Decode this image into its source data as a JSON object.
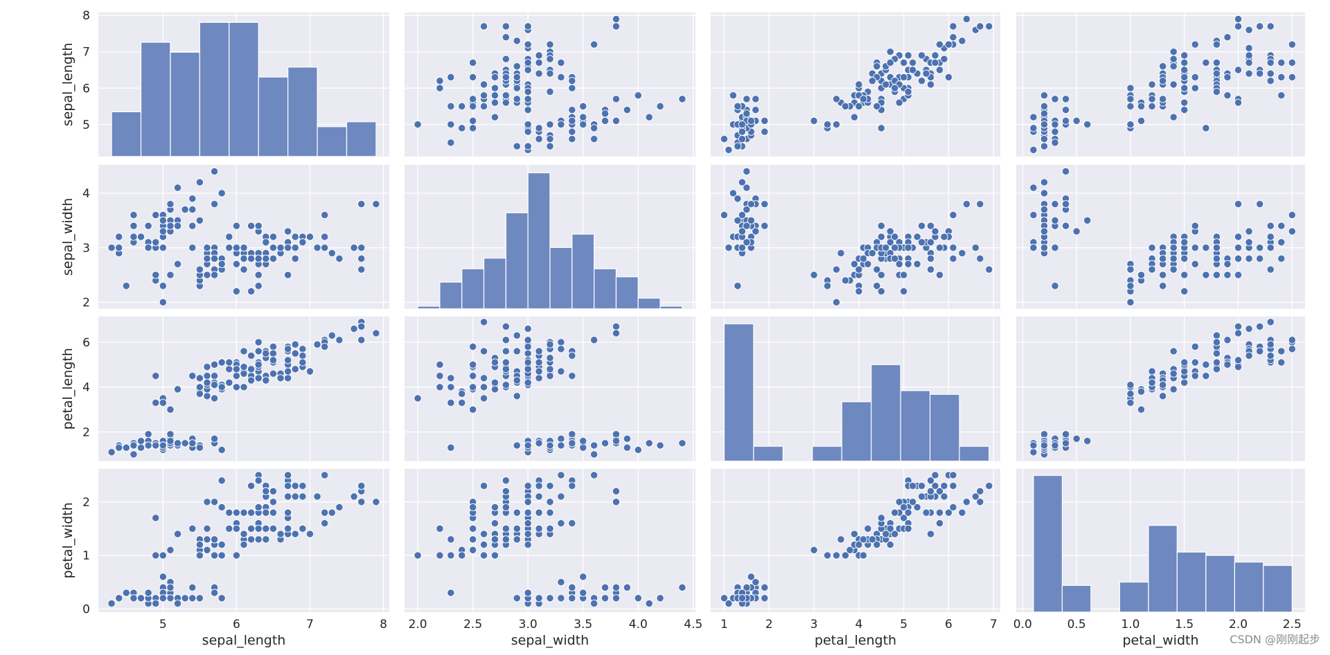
{
  "chart_data": {
    "type": "pairplot",
    "variables": [
      "sepal_length",
      "sepal_width",
      "petal_length",
      "petal_width"
    ],
    "axis_labels": [
      "sepal_length",
      "sepal_width",
      "petal_length",
      "petal_width"
    ],
    "ranges": [
      [
        4.12,
        8.08
      ],
      [
        1.88,
        4.52
      ],
      [
        0.7,
        7.15
      ],
      [
        -0.06,
        2.62
      ]
    ],
    "ticks": [
      [
        5,
        6,
        7,
        8
      ],
      [
        2.0,
        2.5,
        3.0,
        3.5,
        4.0,
        4.5
      ],
      [
        1,
        2,
        3,
        4,
        5,
        6,
        7
      ],
      [
        0.0,
        0.5,
        1.0,
        1.5,
        2.0,
        2.5
      ]
    ],
    "tick_labels": [
      [
        "5",
        "6",
        "7",
        "8"
      ],
      [
        "2.0",
        "2.5",
        "3.0",
        "3.5",
        "4.0",
        "4.5"
      ],
      [
        "1",
        "2",
        "3",
        "4",
        "5",
        "6",
        "7"
      ],
      [
        "0.0",
        "0.5",
        "1.0",
        "1.5",
        "2.0",
        "2.5"
      ]
    ],
    "y_ticks": [
      [
        5,
        6,
        7,
        8
      ],
      [
        2,
        3,
        4
      ],
      [
        2,
        4,
        6
      ],
      [
        0,
        1,
        2
      ]
    ],
    "y_tick_labels": [
      [
        "5",
        "6",
        "7",
        "8"
      ],
      [
        "2",
        "3",
        "4"
      ],
      [
        "2",
        "4",
        "6"
      ],
      [
        "0",
        "1",
        "2"
      ]
    ],
    "histograms": [
      {
        "variable": "sepal_length",
        "edges": [
          4.3,
          4.7,
          5.1,
          5.5,
          5.9,
          6.3,
          6.7,
          7.1,
          7.5,
          7.9
        ],
        "counts": [
          9,
          23,
          21,
          27,
          27,
          16,
          18,
          6,
          7
        ],
        "ymax": 29
      },
      {
        "variable": "sepal_width",
        "edges": [
          2.0,
          2.2,
          2.4,
          2.6,
          2.8,
          3.0,
          3.2,
          3.4,
          3.6,
          3.8,
          4.0,
          4.2,
          4.4
        ],
        "counts": [
          1,
          10,
          15,
          19,
          36,
          51,
          23,
          28,
          15,
          12,
          4,
          1
        ],
        "ymax": 54
      },
      {
        "variable": "petal_length",
        "edges": [
          1.0,
          1.655,
          2.31,
          2.965,
          3.62,
          4.275,
          4.93,
          5.585,
          6.24,
          6.9
        ],
        "counts": [
          37,
          4,
          0,
          4,
          16,
          26,
          19,
          18,
          4
        ],
        "ymax": 39
      },
      {
        "variable": "petal_width",
        "edges": [
          0.1,
          0.367,
          0.633,
          0.9,
          1.167,
          1.433,
          1.7,
          1.967,
          2.233,
          2.5
        ],
        "counts": [
          41,
          8,
          0,
          9,
          26,
          18,
          17,
          15,
          14
        ],
        "ymax": 43
      }
    ],
    "samples": [
      [
        5.1,
        3.5,
        1.4,
        0.2
      ],
      [
        4.9,
        3.0,
        1.4,
        0.2
      ],
      [
        4.7,
        3.2,
        1.3,
        0.2
      ],
      [
        4.6,
        3.1,
        1.5,
        0.2
      ],
      [
        5.0,
        3.6,
        1.4,
        0.2
      ],
      [
        5.4,
        3.9,
        1.7,
        0.4
      ],
      [
        4.6,
        3.4,
        1.4,
        0.3
      ],
      [
        5.0,
        3.4,
        1.5,
        0.2
      ],
      [
        4.4,
        2.9,
        1.4,
        0.2
      ],
      [
        4.9,
        3.1,
        1.5,
        0.1
      ],
      [
        5.4,
        3.7,
        1.5,
        0.2
      ],
      [
        4.8,
        3.4,
        1.6,
        0.2
      ],
      [
        4.8,
        3.0,
        1.4,
        0.1
      ],
      [
        4.3,
        3.0,
        1.1,
        0.1
      ],
      [
        5.8,
        4.0,
        1.2,
        0.2
      ],
      [
        5.7,
        4.4,
        1.5,
        0.4
      ],
      [
        5.4,
        3.9,
        1.3,
        0.4
      ],
      [
        5.1,
        3.5,
        1.4,
        0.3
      ],
      [
        5.7,
        3.8,
        1.7,
        0.3
      ],
      [
        5.1,
        3.8,
        1.5,
        0.3
      ],
      [
        5.4,
        3.4,
        1.7,
        0.2
      ],
      [
        5.1,
        3.7,
        1.5,
        0.4
      ],
      [
        4.6,
        3.6,
        1.0,
        0.2
      ],
      [
        5.1,
        3.3,
        1.7,
        0.5
      ],
      [
        4.8,
        3.4,
        1.9,
        0.2
      ],
      [
        5.0,
        3.0,
        1.6,
        0.2
      ],
      [
        5.0,
        3.4,
        1.6,
        0.4
      ],
      [
        5.2,
        3.5,
        1.5,
        0.2
      ],
      [
        5.2,
        3.4,
        1.4,
        0.2
      ],
      [
        4.7,
        3.2,
        1.6,
        0.2
      ],
      [
        4.8,
        3.1,
        1.6,
        0.2
      ],
      [
        5.4,
        3.4,
        1.5,
        0.4
      ],
      [
        5.2,
        4.1,
        1.5,
        0.1
      ],
      [
        5.5,
        4.2,
        1.4,
        0.2
      ],
      [
        4.9,
        3.1,
        1.5,
        0.2
      ],
      [
        5.0,
        3.2,
        1.2,
        0.2
      ],
      [
        5.5,
        3.5,
        1.3,
        0.2
      ],
      [
        4.9,
        3.6,
        1.4,
        0.1
      ],
      [
        4.4,
        3.0,
        1.3,
        0.2
      ],
      [
        5.1,
        3.4,
        1.5,
        0.2
      ],
      [
        5.0,
        3.5,
        1.3,
        0.3
      ],
      [
        4.5,
        2.3,
        1.3,
        0.3
      ],
      [
        4.4,
        3.2,
        1.3,
        0.2
      ],
      [
        5.0,
        3.5,
        1.6,
        0.6
      ],
      [
        5.1,
        3.8,
        1.9,
        0.4
      ],
      [
        4.8,
        3.0,
        1.4,
        0.3
      ],
      [
        5.1,
        3.8,
        1.6,
        0.2
      ],
      [
        4.6,
        3.2,
        1.4,
        0.2
      ],
      [
        5.3,
        3.7,
        1.5,
        0.2
      ],
      [
        5.0,
        3.3,
        1.4,
        0.2
      ],
      [
        7.0,
        3.2,
        4.7,
        1.4
      ],
      [
        6.4,
        3.2,
        4.5,
        1.5
      ],
      [
        6.9,
        3.1,
        4.9,
        1.5
      ],
      [
        5.5,
        2.3,
        4.0,
        1.3
      ],
      [
        6.5,
        2.8,
        4.6,
        1.5
      ],
      [
        5.7,
        2.8,
        4.5,
        1.3
      ],
      [
        6.3,
        3.3,
        4.7,
        1.6
      ],
      [
        4.9,
        2.4,
        3.3,
        1.0
      ],
      [
        6.6,
        2.9,
        4.6,
        1.3
      ],
      [
        5.2,
        2.7,
        3.9,
        1.4
      ],
      [
        5.0,
        2.0,
        3.5,
        1.0
      ],
      [
        5.9,
        3.0,
        4.2,
        1.5
      ],
      [
        6.0,
        2.2,
        4.0,
        1.0
      ],
      [
        6.1,
        2.9,
        4.7,
        1.4
      ],
      [
        5.6,
        2.9,
        3.6,
        1.3
      ],
      [
        6.7,
        3.1,
        4.4,
        1.4
      ],
      [
        5.6,
        3.0,
        4.5,
        1.5
      ],
      [
        5.8,
        2.7,
        4.1,
        1.0
      ],
      [
        6.2,
        2.2,
        4.5,
        1.5
      ],
      [
        5.6,
        2.5,
        3.9,
        1.1
      ],
      [
        5.9,
        3.2,
        4.8,
        1.8
      ],
      [
        6.1,
        2.8,
        4.0,
        1.3
      ],
      [
        6.3,
        2.5,
        4.9,
        1.5
      ],
      [
        6.1,
        2.8,
        4.7,
        1.2
      ],
      [
        6.4,
        2.9,
        4.3,
        1.3
      ],
      [
        6.6,
        3.0,
        4.4,
        1.4
      ],
      [
        6.8,
        2.8,
        4.8,
        1.4
      ],
      [
        6.7,
        3.0,
        5.0,
        1.7
      ],
      [
        6.0,
        2.9,
        4.5,
        1.5
      ],
      [
        5.7,
        2.6,
        3.5,
        1.0
      ],
      [
        5.5,
        2.4,
        3.8,
        1.1
      ],
      [
        5.5,
        2.4,
        3.7,
        1.0
      ],
      [
        5.8,
        2.7,
        3.9,
        1.2
      ],
      [
        6.0,
        2.7,
        5.1,
        1.6
      ],
      [
        5.4,
        3.0,
        4.5,
        1.5
      ],
      [
        6.0,
        3.4,
        4.5,
        1.6
      ],
      [
        6.7,
        3.1,
        4.7,
        1.5
      ],
      [
        6.3,
        2.3,
        4.4,
        1.3
      ],
      [
        5.6,
        3.0,
        4.1,
        1.3
      ],
      [
        5.5,
        2.5,
        4.0,
        1.3
      ],
      [
        5.5,
        2.6,
        4.4,
        1.2
      ],
      [
        6.1,
        3.0,
        4.6,
        1.4
      ],
      [
        5.8,
        2.6,
        4.0,
        1.2
      ],
      [
        5.0,
        2.3,
        3.3,
        1.0
      ],
      [
        5.6,
        2.7,
        4.2,
        1.3
      ],
      [
        5.7,
        3.0,
        4.2,
        1.2
      ],
      [
        5.7,
        2.9,
        4.2,
        1.3
      ],
      [
        6.2,
        2.9,
        4.3,
        1.3
      ],
      [
        5.1,
        2.5,
        3.0,
        1.1
      ],
      [
        5.7,
        2.8,
        4.1,
        1.3
      ],
      [
        6.3,
        3.3,
        6.0,
        2.5
      ],
      [
        5.8,
        2.7,
        5.1,
        1.9
      ],
      [
        7.1,
        3.0,
        5.9,
        2.1
      ],
      [
        6.3,
        2.9,
        5.6,
        1.8
      ],
      [
        6.5,
        3.0,
        5.8,
        2.2
      ],
      [
        7.6,
        3.0,
        6.6,
        2.1
      ],
      [
        4.9,
        2.5,
        4.5,
        1.7
      ],
      [
        7.3,
        2.9,
        6.3,
        1.8
      ],
      [
        6.7,
        2.5,
        5.8,
        1.8
      ],
      [
        7.2,
        3.6,
        6.1,
        2.5
      ],
      [
        6.5,
        3.2,
        5.1,
        2.0
      ],
      [
        6.4,
        2.7,
        5.3,
        1.9
      ],
      [
        6.8,
        3.0,
        5.5,
        2.1
      ],
      [
        5.7,
        2.5,
        5.0,
        2.0
      ],
      [
        5.8,
        2.8,
        5.1,
        2.4
      ],
      [
        6.4,
        3.2,
        5.3,
        2.3
      ],
      [
        6.5,
        3.0,
        5.5,
        1.8
      ],
      [
        7.7,
        3.8,
        6.7,
        2.2
      ],
      [
        7.7,
        2.6,
        6.9,
        2.3
      ],
      [
        6.0,
        2.2,
        5.0,
        1.5
      ],
      [
        6.9,
        3.2,
        5.7,
        2.3
      ],
      [
        5.6,
        2.8,
        4.9,
        2.0
      ],
      [
        7.7,
        2.8,
        6.7,
        2.0
      ],
      [
        6.3,
        2.7,
        4.9,
        1.8
      ],
      [
        6.7,
        3.3,
        5.7,
        2.1
      ],
      [
        7.2,
        3.2,
        6.0,
        1.8
      ],
      [
        6.2,
        2.8,
        4.8,
        1.8
      ],
      [
        6.1,
        3.0,
        4.9,
        1.8
      ],
      [
        6.4,
        2.8,
        5.6,
        2.1
      ],
      [
        7.2,
        3.0,
        5.8,
        1.6
      ],
      [
        7.4,
        2.8,
        6.1,
        1.9
      ],
      [
        7.9,
        3.8,
        6.4,
        2.0
      ],
      [
        6.4,
        2.8,
        5.6,
        2.2
      ],
      [
        6.3,
        2.8,
        5.1,
        1.5
      ],
      [
        6.1,
        2.6,
        5.6,
        1.4
      ],
      [
        7.7,
        3.0,
        6.1,
        2.3
      ],
      [
        6.3,
        3.4,
        5.6,
        2.4
      ],
      [
        6.4,
        3.1,
        5.5,
        1.8
      ],
      [
        6.0,
        3.0,
        4.8,
        1.8
      ],
      [
        6.9,
        3.1,
        5.4,
        2.1
      ],
      [
        6.7,
        3.1,
        5.6,
        2.4
      ],
      [
        6.9,
        3.1,
        5.1,
        2.3
      ],
      [
        5.8,
        2.7,
        5.1,
        1.9
      ],
      [
        6.8,
        3.2,
        5.9,
        2.3
      ],
      [
        6.7,
        3.3,
        5.7,
        2.5
      ],
      [
        6.7,
        3.0,
        5.2,
        2.3
      ],
      [
        6.3,
        2.5,
        5.0,
        1.9
      ],
      [
        6.5,
        3.0,
        5.2,
        2.0
      ],
      [
        6.2,
        3.4,
        5.4,
        2.3
      ],
      [
        5.9,
        3.0,
        5.1,
        1.8
      ]
    ],
    "colors": {
      "mark": "#4c72b0",
      "hist_fill": "#6e89bf",
      "panel_bg": "#eaeaf2",
      "grid": "#ffffff"
    }
  },
  "watermark": "CSDN @刚刚起步"
}
